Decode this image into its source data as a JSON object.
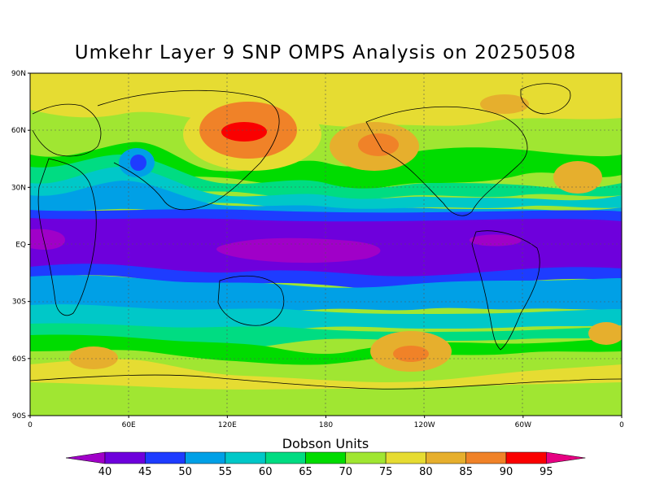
{
  "title": "Umkehr Layer 9 SNP OMPS Analysis on 20250508",
  "map": {
    "projection": "equirectangular",
    "lon_range": [
      0,
      360
    ],
    "lat_range": [
      -90,
      90
    ],
    "grid": true,
    "grid_style": "dotted",
    "y_ticks": [
      {
        "lat": 90,
        "label": "90N"
      },
      {
        "lat": 60,
        "label": "60N"
      },
      {
        "lat": 30,
        "label": "30N"
      },
      {
        "lat": 0,
        "label": "EQ"
      },
      {
        "lat": -30,
        "label": "30S"
      },
      {
        "lat": -60,
        "label": "60S"
      },
      {
        "lat": -90,
        "label": "90S"
      }
    ],
    "x_ticks": [
      {
        "lon": 0,
        "label": "0"
      },
      {
        "lon": 60,
        "label": "60E"
      },
      {
        "lon": 120,
        "label": "120E"
      },
      {
        "lon": 180,
        "label": "180"
      },
      {
        "lon": 240,
        "label": "120W"
      },
      {
        "lon": 300,
        "label": "60W"
      },
      {
        "lon": 360,
        "label": "0"
      }
    ]
  },
  "colorbar": {
    "title": "Dobson Units",
    "levels": [
      40,
      45,
      50,
      55,
      60,
      65,
      70,
      75,
      80,
      85,
      90,
      95
    ],
    "colors": [
      "#a000c8",
      "#6e00dc",
      "#1e3cff",
      "#00a0e6",
      "#00c8c8",
      "#00dc82",
      "#00dc00",
      "#a0e632",
      "#e6dc32",
      "#e6af2d",
      "#f08228",
      "#fa0000",
      "#e60082"
    ]
  },
  "field_features": [
    {
      "kind": "band",
      "description_ref": "equatorial-minimum",
      "lat_center": 0,
      "value": 42
    },
    {
      "kind": "max",
      "lon": 115,
      "lat": 60,
      "value": 92
    },
    {
      "kind": "max",
      "lon": 215,
      "lat": 55,
      "value": 86
    },
    {
      "kind": "max",
      "lon": 345,
      "lat": 40,
      "value": 84
    },
    {
      "kind": "max",
      "lon": 225,
      "lat": -55,
      "value": 86
    },
    {
      "kind": "max",
      "lon": 40,
      "lat": -60,
      "value": 83
    },
    {
      "kind": "max",
      "lon": 355,
      "lat": -50,
      "value": 84
    },
    {
      "kind": "min",
      "lon": 67,
      "lat": 42,
      "value": 52
    }
  ]
}
